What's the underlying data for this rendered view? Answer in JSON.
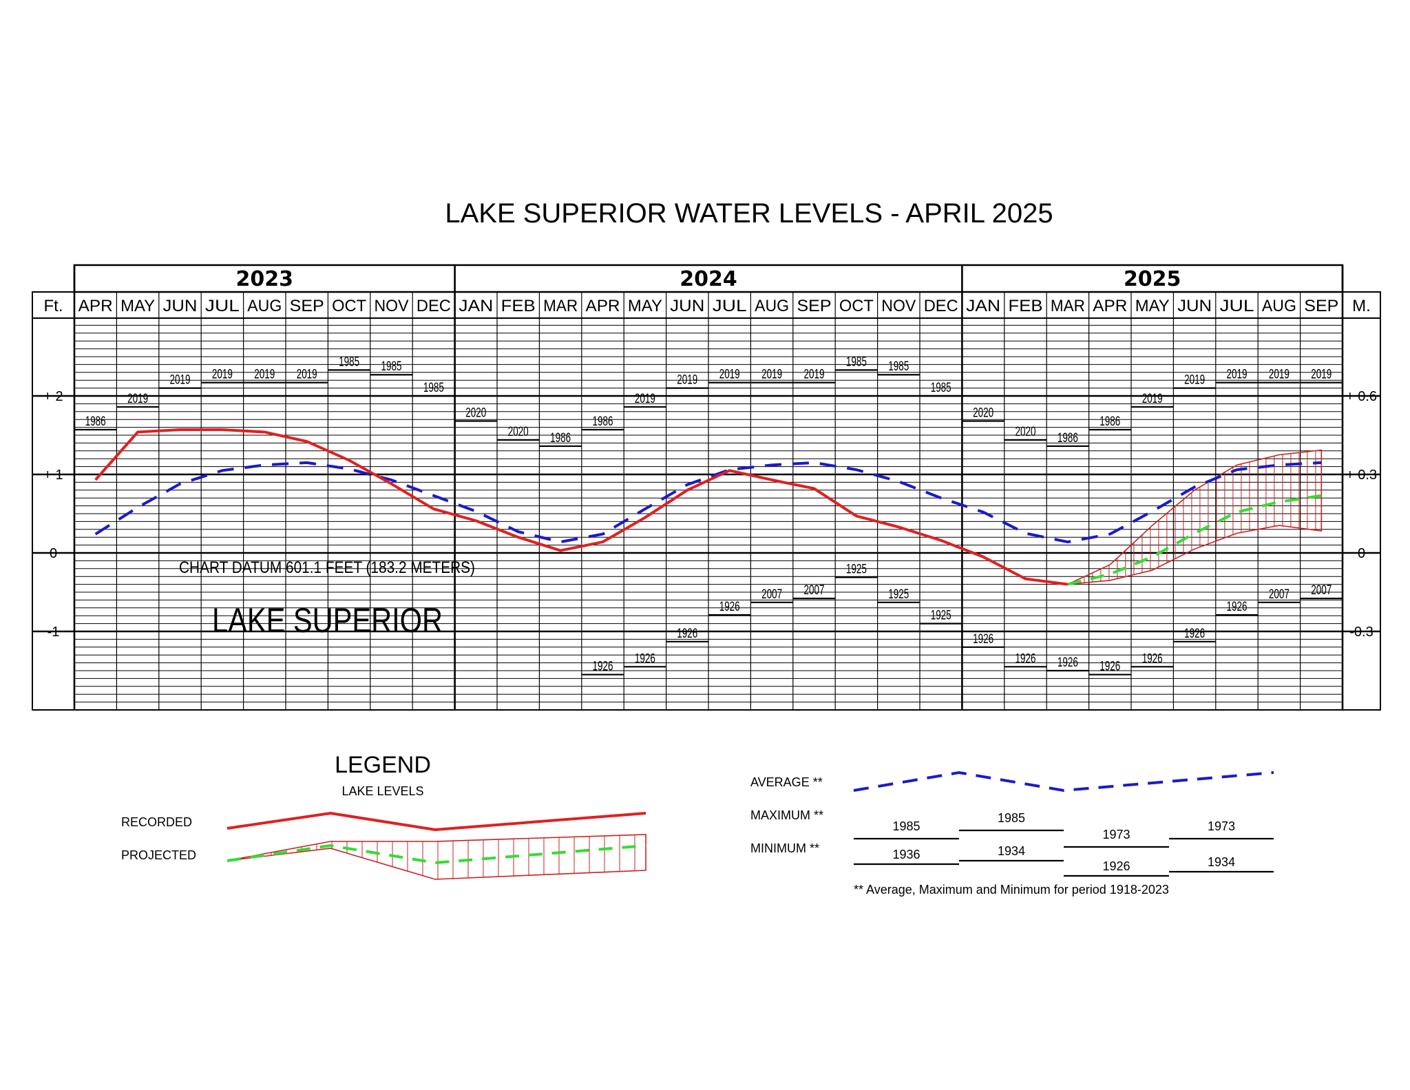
{
  "colors": {
    "recorded": "#e02020",
    "average": "#1a1acc",
    "projected": "#33dd33",
    "envelope": "#cc2020",
    "grid": "#000000"
  },
  "title": "LAKE SUPERIOR WATER LEVELS - APRIL 2025",
  "years": [
    {
      "label": "2023",
      "start": 0,
      "span": 9
    },
    {
      "label": "2024",
      "start": 9,
      "span": 12
    },
    {
      "label": "2025",
      "start": 21,
      "span": 9
    }
  ],
  "left_unit": "Ft.",
  "right_unit": "M.",
  "months": [
    "APR",
    "MAY",
    "JUN",
    "JUL",
    "AUG",
    "SEP",
    "OCT",
    "NOV",
    "DEC",
    "JAN",
    "FEB",
    "MAR",
    "APR",
    "MAY",
    "JUN",
    "JUL",
    "AUG",
    "SEP",
    "OCT",
    "NOV",
    "DEC",
    "JAN",
    "FEB",
    "MAR",
    "APR",
    "MAY",
    "JUN",
    "JUL",
    "AUG",
    "SEP"
  ],
  "left_ticks": [
    {
      "v": 2,
      "label": "+ 2"
    },
    {
      "v": 1,
      "label": "+ 1"
    },
    {
      "v": 0,
      "label": "0"
    },
    {
      "v": -1,
      "label": "-1"
    }
  ],
  "right_ticks": [
    {
      "v": 2,
      "label": "+ 0.6"
    },
    {
      "v": 1,
      "label": "+ 0.3"
    },
    {
      "v": 0,
      "label": "0"
    },
    {
      "v": -1,
      "label": "-0.3"
    }
  ],
  "chart_datum_text": "CHART DATUM  601.1 FEET (183.2 METERS)",
  "lake_label": "LAKE SUPERIOR",
  "chart_data": {
    "type": "line",
    "title": "LAKE SUPERIOR WATER LEVELS - APRIL 2025",
    "x": [
      "APR 2023",
      "MAY 2023",
      "JUN 2023",
      "JUL 2023",
      "AUG 2023",
      "SEP 2023",
      "OCT 2023",
      "NOV 2023",
      "DEC 2023",
      "JAN 2024",
      "FEB 2024",
      "MAR 2024",
      "APR 2024",
      "MAY 2024",
      "JUN 2024",
      "JUL 2024",
      "AUG 2024",
      "SEP 2024",
      "OCT 2024",
      "NOV 2024",
      "DEC 2024",
      "JAN 2025",
      "FEB 2025",
      "MAR 2025",
      "APR 2025",
      "MAY 2025",
      "JUN 2025",
      "JUL 2025",
      "AUG 2025",
      "SEP 2025"
    ],
    "ylim": [
      -1.98,
      2.97
    ],
    "y_units": "Ft.",
    "grid": true,
    "recorded": [
      0.93,
      1.54,
      1.57,
      1.57,
      1.54,
      1.42,
      1.18,
      0.88,
      0.56,
      0.41,
      0.2,
      0.03,
      0.14,
      0.45,
      0.8,
      1.05,
      0.93,
      0.82,
      0.47,
      0.33,
      0.16,
      -0.05,
      -0.33,
      -0.4
    ],
    "average": [
      0.24,
      0.58,
      0.88,
      1.05,
      1.12,
      1.15,
      1.07,
      0.93,
      0.73,
      0.53,
      0.27,
      0.14,
      0.24,
      0.56,
      0.87,
      1.06,
      1.12,
      1.15,
      1.06,
      0.91,
      0.7,
      0.52,
      0.25,
      0.14,
      0.24,
      0.53,
      0.84,
      1.06,
      1.12,
      1.15
    ],
    "projected": {
      "start_index": 23,
      "mid": [
        -0.4,
        -0.27,
        -0.05,
        0.25,
        0.52,
        0.65,
        0.73
      ],
      "upper": [
        -0.4,
        -0.15,
        0.35,
        0.8,
        1.12,
        1.25,
        1.31
      ],
      "lower": [
        -0.4,
        -0.35,
        -0.22,
        0.05,
        0.25,
        0.35,
        0.28
      ]
    },
    "maximum": [
      {
        "v": 1.57,
        "year": "1986"
      },
      {
        "v": 1.86,
        "year": "2019"
      },
      {
        "v": 2.1,
        "year": "2019"
      },
      {
        "v": 2.17,
        "year": "2019"
      },
      {
        "v": 2.17,
        "year": "2019"
      },
      {
        "v": 2.17,
        "year": "2019"
      },
      {
        "v": 2.33,
        "year": "1985"
      },
      {
        "v": 2.27,
        "year": "1985"
      },
      {
        "v": 2.0,
        "year": "1985"
      },
      {
        "v": 1.68,
        "year": "2020"
      },
      {
        "v": 1.44,
        "year": "2020"
      },
      {
        "v": 1.36,
        "year": "1986"
      },
      {
        "v": 1.57,
        "year": "1986"
      },
      {
        "v": 1.86,
        "year": "2019"
      },
      {
        "v": 2.1,
        "year": "2019"
      },
      {
        "v": 2.17,
        "year": "2019"
      },
      {
        "v": 2.17,
        "year": "2019"
      },
      {
        "v": 2.17,
        "year": "2019"
      },
      {
        "v": 2.33,
        "year": "1985"
      },
      {
        "v": 2.27,
        "year": "1985"
      },
      {
        "v": 2.0,
        "year": "1985"
      },
      {
        "v": 1.68,
        "year": "2020"
      },
      {
        "v": 1.44,
        "year": "2020"
      },
      {
        "v": 1.36,
        "year": "1986"
      },
      {
        "v": 1.57,
        "year": "1986"
      },
      {
        "v": 1.86,
        "year": "2019"
      },
      {
        "v": 2.1,
        "year": "2019"
      },
      {
        "v": 2.17,
        "year": "2019"
      },
      {
        "v": 2.17,
        "year": "2019"
      },
      {
        "v": 2.17,
        "year": "2019"
      }
    ],
    "minimum": [
      null,
      null,
      null,
      null,
      null,
      null,
      null,
      null,
      null,
      null,
      null,
      null,
      {
        "v": -1.55,
        "year": "1926"
      },
      {
        "v": -1.45,
        "year": "1926"
      },
      {
        "v": -1.13,
        "year": "1926"
      },
      {
        "v": -0.79,
        "year": "1926"
      },
      {
        "v": -0.63,
        "year": "2007"
      },
      {
        "v": -0.58,
        "year": "2007"
      },
      {
        "v": -0.31,
        "year": "1925"
      },
      {
        "v": -0.63,
        "year": "1925"
      },
      {
        "v": -0.9,
        "year": "1925"
      },
      {
        "v": -1.2,
        "year": "1926"
      },
      {
        "v": -1.45,
        "year": "1926"
      },
      {
        "v": -1.5,
        "year": "1926"
      },
      {
        "v": -1.55,
        "year": "1926"
      },
      {
        "v": -1.45,
        "year": "1926"
      },
      {
        "v": -1.13,
        "year": "1926"
      },
      {
        "v": -0.79,
        "year": "1926"
      },
      {
        "v": -0.63,
        "year": "2007"
      },
      {
        "v": -0.58,
        "year": "2007"
      }
    ]
  },
  "legend": {
    "title": "LEGEND",
    "subtitle": "LAKE LEVELS",
    "recorded_label": "RECORDED",
    "projected_label": "PROJECTED",
    "average_label": "AVERAGE **",
    "maximum_label": "MAXIMUM **",
    "minimum_label": "MINIMUM **",
    "max_years": [
      "1985",
      "1985",
      "1973",
      "1973"
    ],
    "min_years": [
      "1936",
      "1934",
      "1926",
      "1934"
    ],
    "footnote": "** Average, Maximum and Minimum for period 1918-2023"
  }
}
